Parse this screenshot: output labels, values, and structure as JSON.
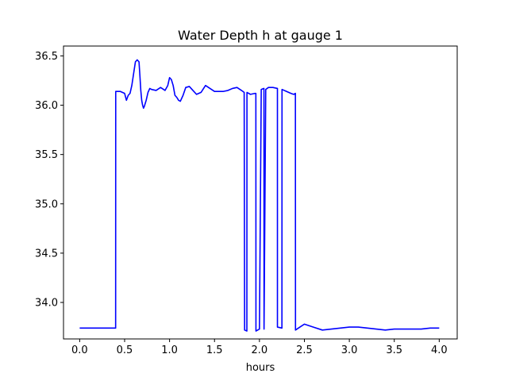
{
  "chart_data": {
    "type": "line",
    "title": "Water Depth h at gauge 1",
    "xlabel": "hours",
    "ylabel": "",
    "xlim": [
      -0.18,
      4.2
    ],
    "ylim": [
      33.63,
      36.6
    ],
    "xticks": [
      0.0,
      0.5,
      1.0,
      1.5,
      2.0,
      2.5,
      3.0,
      3.5,
      4.0
    ],
    "xtick_labels": [
      "0.0",
      "0.5",
      "1.0",
      "1.5",
      "2.0",
      "2.5",
      "3.0",
      "3.5",
      "4.0"
    ],
    "yticks": [
      34.0,
      34.5,
      35.0,
      35.5,
      36.0,
      36.5
    ],
    "ytick_labels": [
      "34.0",
      "34.5",
      "35.0",
      "35.5",
      "36.0",
      "36.5"
    ],
    "grid": false,
    "series": [
      {
        "color": "#0000ff",
        "x": [
          0.0,
          0.2,
          0.4,
          0.401,
          0.45,
          0.5,
          0.52,
          0.54,
          0.56,
          0.58,
          0.6,
          0.62,
          0.64,
          0.66,
          0.67,
          0.68,
          0.69,
          0.7,
          0.71,
          0.72,
          0.74,
          0.76,
          0.78,
          0.8,
          0.85,
          0.9,
          0.95,
          0.98,
          1.0,
          1.02,
          1.04,
          1.06,
          1.08,
          1.1,
          1.12,
          1.15,
          1.18,
          1.22,
          1.26,
          1.3,
          1.35,
          1.4,
          1.45,
          1.5,
          1.55,
          1.6,
          1.65,
          1.7,
          1.75,
          1.8,
          1.83,
          1.835,
          1.86,
          1.861,
          1.9,
          1.95,
          1.96,
          1.961,
          2.0,
          2.02,
          2.021,
          2.05,
          2.051,
          2.07,
          2.071,
          2.1,
          2.15,
          2.2,
          2.2001,
          2.25,
          2.251,
          2.3,
          2.35,
          2.38,
          2.4,
          2.401,
          2.45,
          2.5,
          2.6,
          2.7,
          2.8,
          2.9,
          3.0,
          3.1,
          3.2,
          3.3,
          3.4,
          3.5,
          3.6,
          3.7,
          3.8,
          3.9,
          4.0
        ],
        "y": [
          33.74,
          33.74,
          33.74,
          36.14,
          36.14,
          36.12,
          36.05,
          36.1,
          36.12,
          36.2,
          36.32,
          36.44,
          36.46,
          36.44,
          36.3,
          36.15,
          36.05,
          36.0,
          35.97,
          35.99,
          36.05,
          36.13,
          36.17,
          36.16,
          36.15,
          36.18,
          36.15,
          36.2,
          36.28,
          36.26,
          36.2,
          36.1,
          36.08,
          36.05,
          36.04,
          36.1,
          36.18,
          36.19,
          36.15,
          36.11,
          36.13,
          36.2,
          36.17,
          36.14,
          36.14,
          36.14,
          36.15,
          36.17,
          36.18,
          36.15,
          36.13,
          33.72,
          33.71,
          36.13,
          36.11,
          36.12,
          36.12,
          33.71,
          33.73,
          36.16,
          36.16,
          36.17,
          33.73,
          36.16,
          36.16,
          36.18,
          36.18,
          36.17,
          33.75,
          33.74,
          36.16,
          36.14,
          36.12,
          36.11,
          36.12,
          33.72,
          33.75,
          33.78,
          33.75,
          33.72,
          33.73,
          33.74,
          33.75,
          33.75,
          33.74,
          33.73,
          33.72,
          33.73,
          33.73,
          33.73,
          33.73,
          33.74,
          33.74
        ]
      }
    ]
  }
}
